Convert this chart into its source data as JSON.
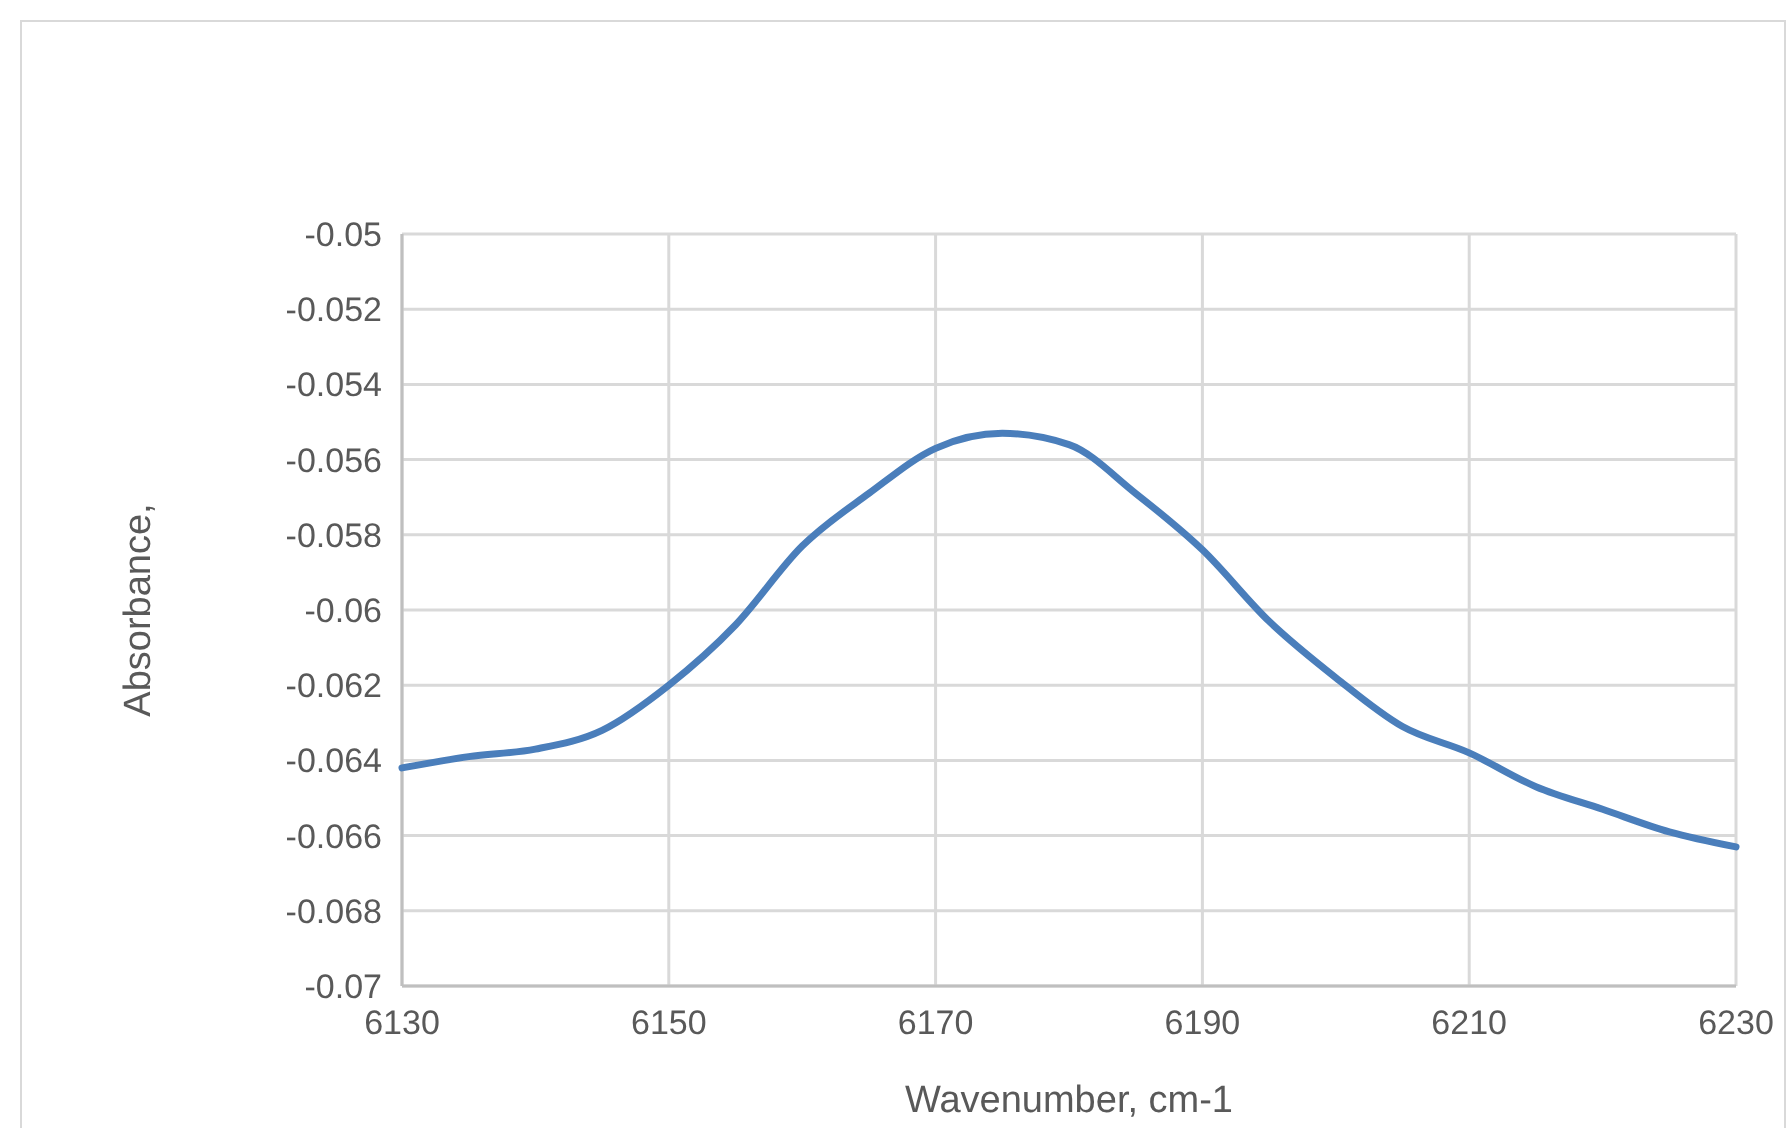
{
  "chart_data": {
    "type": "line",
    "xlabel": "Wavenumber, cm-1",
    "ylabel": "Absorbance,",
    "x": [
      6130,
      6135,
      6140,
      6145,
      6150,
      6155,
      6160,
      6165,
      6170,
      6175,
      6180,
      6185,
      6190,
      6195,
      6200,
      6205,
      6210,
      6215,
      6220,
      6225,
      6230
    ],
    "series": [
      {
        "color": "#4a7ebb",
        "values": [
          -0.0642,
          -0.0639,
          -0.0637,
          -0.0632,
          -0.062,
          -0.0604,
          -0.0583,
          -0.0569,
          -0.0557,
          -0.0553,
          -0.0556,
          -0.0569,
          -0.0584,
          -0.0603,
          -0.0618,
          -0.0631,
          -0.0638,
          -0.0647,
          -0.0653,
          -0.0659,
          -0.0663
        ]
      }
    ],
    "xlim": [
      6130,
      6230
    ],
    "xticks": [
      6130,
      6150,
      6170,
      6190,
      6210,
      6230
    ],
    "ylim": [
      -0.07,
      -0.05
    ],
    "yticks": [
      -0.07,
      -0.068,
      -0.066,
      -0.064,
      -0.062,
      -0.06,
      -0.058,
      -0.056,
      -0.054,
      -0.052,
      -0.05
    ],
    "grid": true,
    "marker": "none",
    "line_style": "solid"
  }
}
